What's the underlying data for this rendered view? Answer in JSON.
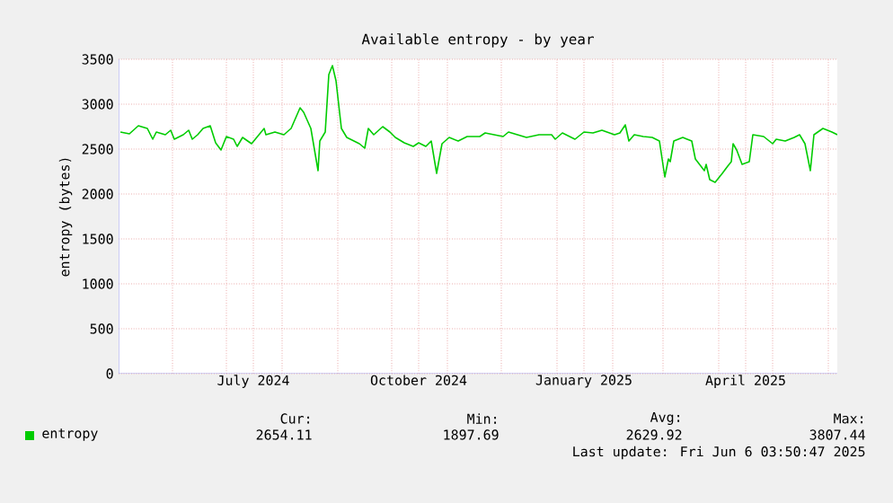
{
  "chart_data": {
    "type": "line",
    "title": "Available entropy - by year",
    "ylabel": "entropy (bytes)",
    "x": [
      "2024-05-03",
      "2024-05-08",
      "2024-05-13",
      "2024-05-18",
      "2024-05-21",
      "2024-05-23",
      "2024-05-28",
      "2024-05-31",
      "2024-06-02",
      "2024-06-07",
      "2024-06-10",
      "2024-06-12",
      "2024-06-15",
      "2024-06-18",
      "2024-06-22",
      "2024-06-25",
      "2024-06-28",
      "2024-07-01",
      "2024-07-05",
      "2024-07-07",
      "2024-07-10",
      "2024-07-15",
      "2024-07-22",
      "2024-07-23",
      "2024-07-28",
      "2024-08-02",
      "2024-08-06",
      "2024-08-11",
      "2024-08-13",
      "2024-08-17",
      "2024-08-21",
      "2024-08-22",
      "2024-08-25",
      "2024-08-27",
      "2024-08-29",
      "2024-08-31",
      "2024-09-03",
      "2024-09-06",
      "2024-09-13",
      "2024-09-16",
      "2024-09-18",
      "2024-09-21",
      "2024-09-26",
      "2024-09-30",
      "2024-10-03",
      "2024-10-08",
      "2024-10-13",
      "2024-10-16",
      "2024-10-20",
      "2024-10-23",
      "2024-10-26",
      "2024-10-29",
      "2024-11-02",
      "2024-11-07",
      "2024-11-12",
      "2024-11-19",
      "2024-11-22",
      "2024-12-02",
      "2024-12-05",
      "2024-12-10",
      "2024-12-15",
      "2024-12-22",
      "2024-12-29",
      "2024-12-31",
      "2025-01-04",
      "2025-01-11",
      "2025-01-16",
      "2025-01-21",
      "2025-01-26",
      "2025-02-02",
      "2025-02-05",
      "2025-02-08",
      "2025-02-10",
      "2025-02-13",
      "2025-02-18",
      "2025-02-23",
      "2025-02-27",
      "2025-03-02",
      "2025-03-04",
      "2025-03-05",
      "2025-03-07",
      "2025-03-12",
      "2025-03-17",
      "2025-03-19",
      "2025-03-24",
      "2025-03-25",
      "2025-03-27",
      "2025-03-30",
      "2025-04-03",
      "2025-04-06",
      "2025-04-08",
      "2025-04-09",
      "2025-04-11",
      "2025-04-14",
      "2025-04-18",
      "2025-04-20",
      "2025-04-26",
      "2025-05-01",
      "2025-05-03",
      "2025-05-08",
      "2025-05-13",
      "2025-05-16",
      "2025-05-19",
      "2025-05-22",
      "2025-05-24",
      "2025-05-29",
      "2025-06-03",
      "2025-06-06"
    ],
    "series": [
      {
        "name": "entropy",
        "color": "#00cc00",
        "values": [
          2690,
          2670,
          2760,
          2730,
          2610,
          2690,
          2660,
          2710,
          2610,
          2660,
          2710,
          2610,
          2660,
          2730,
          2760,
          2570,
          2490,
          2640,
          2610,
          2530,
          2630,
          2560,
          2730,
          2660,
          2690,
          2660,
          2730,
          2960,
          2910,
          2730,
          2260,
          2590,
          2690,
          3330,
          3430,
          3260,
          2730,
          2630,
          2560,
          2510,
          2730,
          2660,
          2750,
          2690,
          2630,
          2570,
          2530,
          2570,
          2530,
          2590,
          2230,
          2560,
          2630,
          2590,
          2640,
          2640,
          2680,
          2640,
          2690,
          2660,
          2630,
          2660,
          2660,
          2610,
          2680,
          2610,
          2690,
          2680,
          2710,
          2660,
          2680,
          2770,
          2590,
          2660,
          2640,
          2630,
          2590,
          2190,
          2390,
          2360,
          2590,
          2630,
          2590,
          2390,
          2260,
          2330,
          2160,
          2130,
          2230,
          2310,
          2360,
          2560,
          2490,
          2330,
          2360,
          2660,
          2640,
          2560,
          2610,
          2590,
          2630,
          2660,
          2560,
          2260,
          2660,
          2730,
          2690,
          2660
        ]
      }
    ],
    "xlim": [
      "2024-05-02",
      "2025-06-06"
    ],
    "xticks": [
      {
        "value": "2024-06-01",
        "label": null
      },
      {
        "value": "2024-07-01",
        "label": null
      },
      {
        "value": "2024-07-16",
        "label": "July 2024"
      },
      {
        "value": "2024-08-01",
        "label": null
      },
      {
        "value": "2024-09-01",
        "label": null
      },
      {
        "value": "2024-10-01",
        "label": null
      },
      {
        "value": "2024-10-16",
        "label": "October 2024"
      },
      {
        "value": "2024-11-01",
        "label": null
      },
      {
        "value": "2024-12-01",
        "label": null
      },
      {
        "value": "2025-01-01",
        "label": null
      },
      {
        "value": "2025-01-16",
        "label": "January 2025"
      },
      {
        "value": "2025-02-01",
        "label": null
      },
      {
        "value": "2025-03-01",
        "label": null
      },
      {
        "value": "2025-04-01",
        "label": null
      },
      {
        "value": "2025-04-16",
        "label": "April 2025"
      },
      {
        "value": "2025-05-01",
        "label": null
      },
      {
        "value": "2025-06-01",
        "label": null
      }
    ],
    "ylim": [
      0,
      3500
    ],
    "yticks": [
      0,
      500,
      1000,
      1500,
      2000,
      2500,
      3000,
      3500
    ],
    "grid": true,
    "legend": "bottom left",
    "marker": "none",
    "line_style": "solid",
    "annotations": [
      "Cur:",
      "2654.11",
      "Min:",
      "1897.69",
      "Avg:",
      "2629.92",
      "Max:",
      "3807.44",
      "Last update: Fri Jun  6 03:50:47 2025"
    ]
  }
}
